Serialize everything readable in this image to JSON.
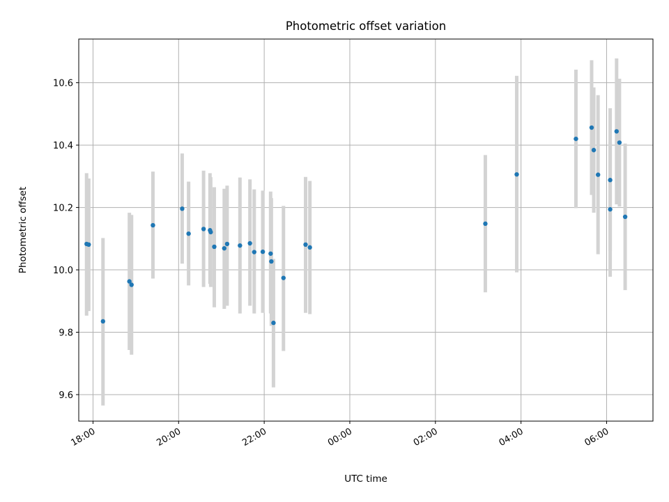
{
  "chart_data": {
    "type": "scatter",
    "title": "Photometric offset variation",
    "xlabel": "UTC time",
    "ylabel": "Photometric offset",
    "x_is_time": true,
    "xlim": [
      "17:40",
      "07:05 +1"
    ],
    "ylim": [
      9.515,
      10.74
    ],
    "x_ticks": [
      {
        "t": "18:00",
        "label": "18:00"
      },
      {
        "t": "20:00",
        "label": "20:00"
      },
      {
        "t": "22:00",
        "label": "22:00"
      },
      {
        "t": "00:00 +1",
        "label": "00:00"
      },
      {
        "t": "02:00 +1",
        "label": "02:00"
      },
      {
        "t": "04:00 +1",
        "label": "04:00"
      },
      {
        "t": "06:00 +1",
        "label": "06:00"
      }
    ],
    "y_ticks": [
      9.6,
      9.8,
      10.0,
      10.2,
      10.4,
      10.6
    ],
    "y_tick_labels": [
      "9.6",
      "9.8",
      "10.0",
      "10.2",
      "10.4",
      "10.6"
    ],
    "grid": true,
    "colors": {
      "point": "#1f77b4",
      "errorbar": "#d3d3d3",
      "grid": "#b0b0b0"
    },
    "points": [
      {
        "t": "17:51",
        "y": 10.083,
        "lo": 9.853,
        "hi": 10.31
      },
      {
        "t": "17:54",
        "y": 10.081,
        "lo": 9.868,
        "hi": 10.293
      },
      {
        "t": "18:14",
        "y": 9.835,
        "lo": 9.565,
        "hi": 10.102
      },
      {
        "t": "18:51",
        "y": 9.963,
        "lo": 9.743,
        "hi": 10.183
      },
      {
        "t": "18:54",
        "y": 9.952,
        "lo": 9.728,
        "hi": 10.176
      },
      {
        "t": "19:24",
        "y": 10.143,
        "lo": 9.972,
        "hi": 10.315
      },
      {
        "t": "20:05",
        "y": 10.196,
        "lo": 10.02,
        "hi": 10.373
      },
      {
        "t": "20:14",
        "y": 10.116,
        "lo": 9.95,
        "hi": 10.283
      },
      {
        "t": "20:35",
        "y": 10.131,
        "lo": 9.945,
        "hi": 10.318
      },
      {
        "t": "20:44",
        "y": 10.127,
        "lo": 9.955,
        "hi": 10.31
      },
      {
        "t": "20:45",
        "y": 10.121,
        "lo": 9.945,
        "hi": 10.297
      },
      {
        "t": "20:50",
        "y": 10.074,
        "lo": 9.88,
        "hi": 10.265
      },
      {
        "t": "21:04",
        "y": 10.069,
        "lo": 9.875,
        "hi": 10.26
      },
      {
        "t": "21:08",
        "y": 10.083,
        "lo": 9.885,
        "hi": 10.27
      },
      {
        "t": "21:26",
        "y": 10.078,
        "lo": 9.86,
        "hi": 10.296
      },
      {
        "t": "21:40",
        "y": 10.085,
        "lo": 9.885,
        "hi": 10.29
      },
      {
        "t": "21:46",
        "y": 10.057,
        "lo": 9.86,
        "hi": 10.258
      },
      {
        "t": "21:58",
        "y": 10.058,
        "lo": 9.862,
        "hi": 10.254
      },
      {
        "t": "22:09",
        "y": 10.052,
        "lo": 9.86,
        "hi": 10.251
      },
      {
        "t": "22:10",
        "y": 10.027,
        "lo": 9.82,
        "hi": 10.23
      },
      {
        "t": "22:13",
        "y": 9.83,
        "lo": 9.623,
        "hi": 10.035
      },
      {
        "t": "22:27",
        "y": 9.974,
        "lo": 9.74,
        "hi": 10.205
      },
      {
        "t": "22:58",
        "y": 10.081,
        "lo": 9.862,
        "hi": 10.298
      },
      {
        "t": "23:04",
        "y": 10.072,
        "lo": 9.858,
        "hi": 10.285
      },
      {
        "t": "03:10 +1",
        "y": 10.148,
        "lo": 9.928,
        "hi": 10.368
      },
      {
        "t": "03:54 +1",
        "y": 10.306,
        "lo": 9.992,
        "hi": 10.622
      },
      {
        "t": "05:17 +1",
        "y": 10.42,
        "lo": 10.198,
        "hi": 10.642
      },
      {
        "t": "05:39 +1",
        "y": 10.456,
        "lo": 10.24,
        "hi": 10.672
      },
      {
        "t": "05:42 +1",
        "y": 10.384,
        "lo": 10.183,
        "hi": 10.585
      },
      {
        "t": "05:48 +1",
        "y": 10.305,
        "lo": 10.05,
        "hi": 10.56
      },
      {
        "t": "06:05 +1",
        "y": 10.288,
        "lo": 10.06,
        "hi": 10.518
      },
      {
        "t": "06:05 +1",
        "y": 10.194,
        "lo": 9.978,
        "hi": 10.41
      },
      {
        "t": "06:14 +1",
        "y": 10.444,
        "lo": 10.21,
        "hi": 10.678
      },
      {
        "t": "06:18 +1",
        "y": 10.408,
        "lo": 10.203,
        "hi": 10.613
      },
      {
        "t": "06:26 +1",
        "y": 10.17,
        "lo": 9.935,
        "hi": 10.405
      }
    ]
  }
}
